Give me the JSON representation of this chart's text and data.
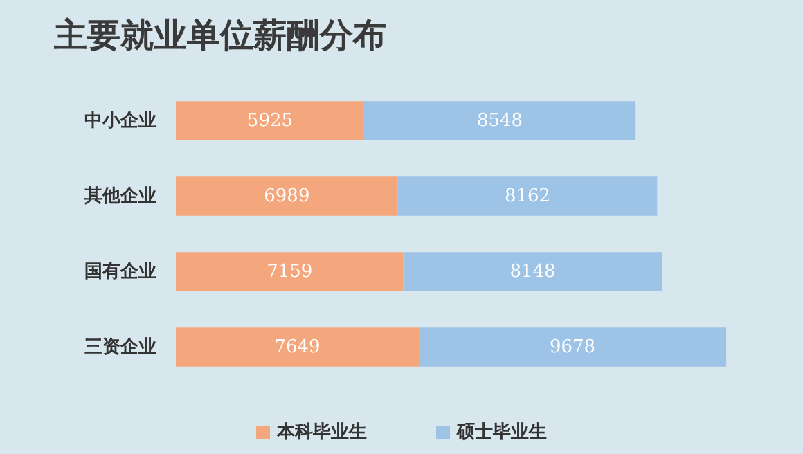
{
  "chart_data": {
    "type": "bar",
    "orientation": "horizontal",
    "stacked": true,
    "title": "主要就业单位薪酬分布",
    "categories": [
      "中小企业",
      "其他企业",
      "国有企业",
      "三资企业"
    ],
    "series": [
      {
        "name": "本科毕业生",
        "color": "#f4a77c",
        "values": [
          5925,
          6989,
          7159,
          7649
        ]
      },
      {
        "name": "硕士毕业生",
        "color": "#9dc3e6",
        "values": [
          8548,
          8162,
          8148,
          9678
        ]
      }
    ],
    "data_labels": true,
    "legend": "bottom",
    "grid": false
  }
}
